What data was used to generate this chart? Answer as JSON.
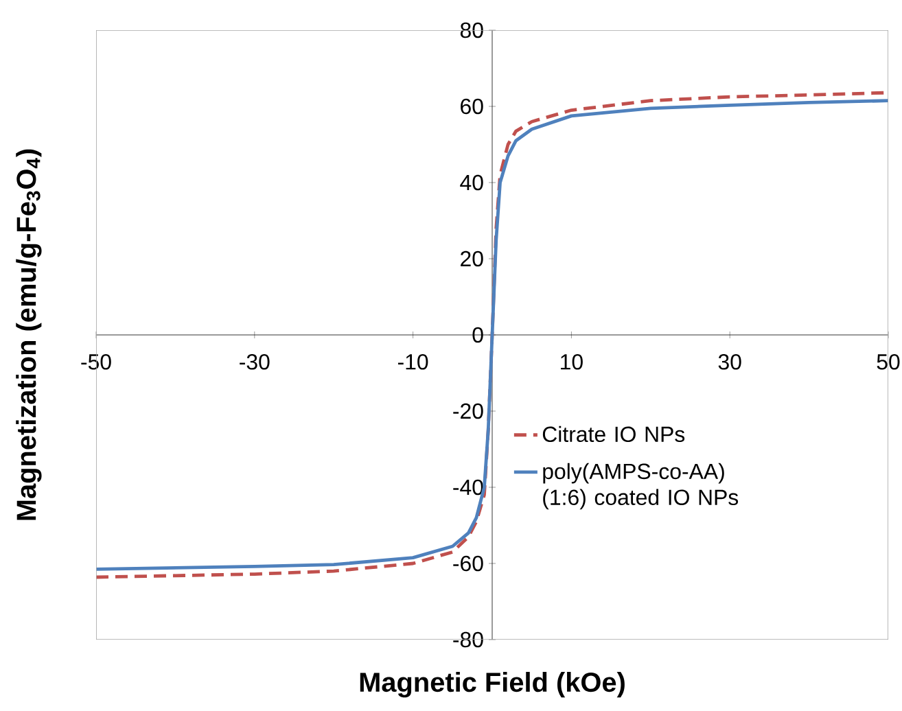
{
  "chart_data": {
    "type": "line",
    "xlabel": "Magnetic Field (kOe)",
    "ylabel": "Magnetization (emu/g-Fe$_{3}$O$_{4}$)",
    "xlim": [
      -50,
      50
    ],
    "ylim": [
      -80,
      80
    ],
    "xticks": [
      -50,
      -30,
      -10,
      10,
      30,
      50
    ],
    "yticks": [
      -80,
      -60,
      -40,
      -20,
      0,
      20,
      40,
      60,
      80
    ],
    "legend": "right",
    "series": [
      {
        "name": "Citrate IO NPs",
        "color": "#c0504d",
        "line_style": "dashed",
        "x": [
          -50,
          -30,
          -20,
          -10,
          -5,
          -3,
          -2,
          -1,
          -0.5,
          0,
          0.5,
          1,
          2,
          3,
          5,
          10,
          20,
          30,
          40,
          50
        ],
        "values": [
          -63.6,
          -62.8,
          -62,
          -60,
          -57,
          -53,
          -49,
          -42,
          -25,
          0,
          28,
          42,
          50,
          53.5,
          56,
          59,
          61.5,
          62.5,
          63,
          63.6
        ]
      },
      {
        "name": "poly(AMPS-co-AA) (1:6) coated IO NPs",
        "color": "#4f81bd",
        "line_style": "solid",
        "x": [
          -50,
          -30,
          -20,
          -10,
          -5,
          -3,
          -2,
          -1,
          -0.5,
          0,
          0.5,
          1,
          2,
          3,
          5,
          10,
          20,
          30,
          40,
          50
        ],
        "values": [
          -61.5,
          -60.8,
          -60.3,
          -58.5,
          -55.5,
          -52,
          -48,
          -40,
          -25,
          0,
          25,
          40,
          47,
          51,
          54,
          57.5,
          59.5,
          60.3,
          61,
          61.5
        ]
      }
    ]
  }
}
